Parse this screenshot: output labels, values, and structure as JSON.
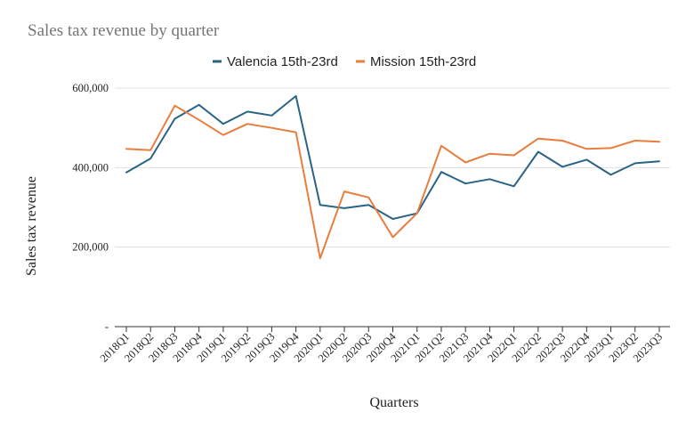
{
  "chart_data": {
    "type": "line",
    "title": "Sales tax revenue by quarter",
    "xlabel": "Quarters",
    "ylabel": "Sales tax revenue",
    "ylim": [
      0,
      600000
    ],
    "yticks": [
      0,
      200000,
      400000,
      600000
    ],
    "ytick_labels": [
      "-",
      "200,000",
      "400,000",
      "600,000"
    ],
    "grid": true,
    "legend_position": "top",
    "categories": [
      "2018Q1",
      "2018Q2",
      "2018Q3",
      "2018Q4",
      "2019Q1",
      "2019Q2",
      "2019Q3",
      "2019Q4",
      "2020Q1",
      "2020Q2",
      "2020Q3",
      "2020Q4",
      "2021Q1",
      "2021Q2",
      "2021Q3",
      "2021Q4",
      "2022Q1",
      "2022Q2",
      "2022Q3",
      "2022Q4",
      "2023Q1",
      "2023Q2",
      "2023Q3"
    ],
    "series": [
      {
        "name": "Valencia 15th-23rd",
        "color": "#2a6484",
        "values": [
          388000,
          423000,
          523000,
          558000,
          510000,
          541000,
          531000,
          580000,
          306000,
          298000,
          306000,
          271000,
          285000,
          389000,
          360000,
          371000,
          353000,
          440000,
          402000,
          420000,
          382000,
          411000,
          416000
        ]
      },
      {
        "name": "Mission 15th-23rd",
        "color": "#e87d3e",
        "values": [
          447000,
          444000,
          556000,
          520000,
          482000,
          510000,
          500000,
          489000,
          172000,
          340000,
          325000,
          225000,
          285000,
          455000,
          413000,
          435000,
          431000,
          473000,
          468000,
          447000,
          449000,
          468000,
          465000
        ]
      }
    ]
  }
}
